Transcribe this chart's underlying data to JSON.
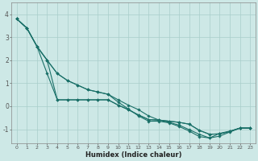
{
  "title": "",
  "xlabel": "Humidex (Indice chaleur)",
  "background_color": "#cde8e6",
  "grid_color": "#a8ceca",
  "line_color": "#1a7068",
  "xlim": [
    -0.5,
    23.5
  ],
  "ylim": [
    -1.6,
    4.5
  ],
  "yticks": [
    -1,
    0,
    1,
    2,
    3,
    4
  ],
  "xtick_labels": [
    "0",
    "1",
    "2",
    "3",
    "4",
    "5",
    "6",
    "7",
    "8",
    "9",
    "1011",
    "1213",
    "1415",
    "1617",
    "1819",
    "2021",
    "2223"
  ],
  "xtick_pos": [
    0,
    1,
    2,
    3,
    4,
    5,
    6,
    7,
    8,
    9,
    10.5,
    12.5,
    14.5,
    16.5,
    18.5,
    20.5,
    22.5
  ],
  "line1_x": [
    0,
    1,
    2,
    3,
    4,
    5,
    6,
    7,
    8,
    9,
    10,
    11,
    12,
    13,
    14,
    15,
    16,
    17,
    18,
    19,
    20,
    21,
    22,
    23
  ],
  "line1_y": [
    3.8,
    3.4,
    2.6,
    2.0,
    0.28,
    0.28,
    0.28,
    0.28,
    0.28,
    0.28,
    0.05,
    -0.15,
    -0.38,
    -0.58,
    -0.6,
    -0.65,
    -0.7,
    -0.78,
    -1.05,
    -1.22,
    -1.2,
    -1.1,
    -0.95,
    -0.95
  ],
  "line2_x": [
    0,
    1,
    2,
    3,
    4,
    5,
    6,
    7,
    8,
    9,
    10,
    11,
    12,
    13,
    14,
    15,
    16,
    17,
    18,
    19,
    20,
    21,
    22,
    23
  ],
  "line2_y": [
    3.8,
    3.4,
    2.6,
    2.0,
    1.42,
    1.12,
    0.92,
    0.72,
    0.62,
    0.52,
    0.28,
    0.05,
    -0.15,
    -0.42,
    -0.6,
    -0.7,
    -0.82,
    -1.02,
    -1.22,
    -1.38,
    -1.3,
    -1.12,
    -0.95,
    -0.95
  ],
  "line3_x": [
    0,
    1,
    2,
    3,
    4,
    5,
    6,
    7,
    8,
    9,
    10,
    11,
    12,
    13,
    14,
    15,
    16,
    17,
    18,
    19,
    20,
    21,
    22,
    23
  ],
  "line3_y": [
    3.8,
    3.4,
    2.6,
    1.42,
    0.28,
    0.28,
    0.28,
    0.28,
    0.28,
    0.28,
    0.05,
    -0.15,
    -0.38,
    -0.58,
    -0.6,
    -0.65,
    -0.7,
    -0.78,
    -1.05,
    -1.22,
    -1.2,
    -1.1,
    -0.95,
    -0.95
  ],
  "line4_x": [
    0,
    1,
    2,
    3,
    4,
    5,
    6,
    7,
    8,
    9,
    10,
    11,
    12,
    13,
    14,
    15,
    16,
    17,
    18,
    19,
    20,
    21,
    22,
    23
  ],
  "line4_y": [
    3.8,
    3.4,
    2.6,
    2.0,
    1.42,
    1.12,
    0.92,
    0.72,
    0.62,
    0.52,
    0.18,
    -0.12,
    -0.42,
    -0.65,
    -0.65,
    -0.72,
    -0.88,
    -1.08,
    -1.32,
    -1.38,
    -1.18,
    -1.08,
    -0.95,
    -0.95
  ]
}
